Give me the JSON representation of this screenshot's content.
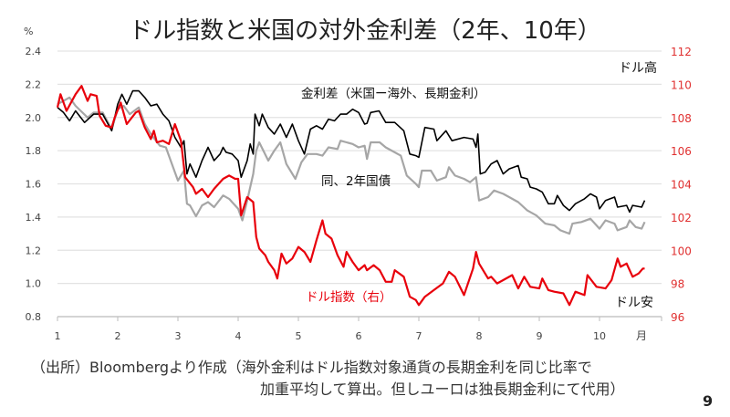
{
  "page_number": "9",
  "footnote": {
    "line1": "（出所）Bloombergより作成（海外金利はドル指数対象通貨の長期金利を同じ比率で",
    "line2": "加重平均して算出。但しユーロは独長期金利にて代用）"
  },
  "colors": {
    "spread10": "#000000",
    "spread2": "#a6a6a6",
    "dxy": "#e8000b",
    "right_axis": "#e03030"
  },
  "chart_data": {
    "type": "line",
    "title": "ドル指数と米国の対外金利差（2年、10年）",
    "ylabel_left": "%",
    "xlabel": "月",
    "x_ticks": [
      "1",
      "2",
      "3",
      "4",
      "5",
      "6",
      "7",
      "8",
      "9",
      "10"
    ],
    "xlim": [
      1,
      11
    ],
    "ylim_left": [
      0.8,
      2.4
    ],
    "ylim_right": [
      96,
      112
    ],
    "yticks_left": [
      "0.8",
      "1.0",
      "1.2",
      "1.4",
      "1.6",
      "1.8",
      "2.0",
      "2.2",
      "2.4"
    ],
    "yticks_right": [
      "96",
      "98",
      "100",
      "102",
      "104",
      "106",
      "108",
      "110",
      "112"
    ],
    "grid": true,
    "annotations": {
      "top_right": "ドル高",
      "bottom_right": "ドル安"
    },
    "series": [
      {
        "name": "金利差（米国ー海外、長期金利）",
        "axis": "left",
        "x": [
          1,
          1.1,
          1.2,
          1.3,
          1.45,
          1.6,
          1.75,
          1.9,
          2.0,
          2.07,
          2.15,
          2.25,
          2.35,
          2.45,
          2.55,
          2.65,
          2.75,
          2.85,
          2.95,
          3.05,
          3.1,
          3.15,
          3.2,
          3.3,
          3.4,
          3.5,
          3.6,
          3.7,
          3.75,
          3.8,
          3.9,
          4.0,
          4.05,
          4.15,
          4.2,
          4.25,
          4.28,
          4.35,
          4.4,
          4.5,
          4.6,
          4.7,
          4.8,
          4.9,
          5.0,
          5.1,
          5.2,
          5.3,
          5.4,
          5.5,
          5.6,
          5.7,
          5.8,
          5.9,
          6.0,
          6.1,
          6.14,
          6.2,
          6.34,
          6.45,
          6.6,
          6.75,
          6.85,
          6.95,
          7.0,
          7.1,
          7.25,
          7.3,
          7.45,
          7.55,
          7.75,
          7.9,
          7.95,
          7.98,
          8.02,
          8.1,
          8.2,
          8.3,
          8.4,
          8.5,
          8.65,
          8.7,
          8.8,
          8.85,
          8.95,
          9.05,
          9.15,
          9.25,
          9.3,
          9.4,
          9.5,
          9.6,
          9.75,
          9.85,
          9.95,
          10.0,
          10.1,
          10.25,
          10.3,
          10.45,
          10.5,
          10.55,
          10.7,
          10.75
        ],
        "y": [
          2.06,
          2.03,
          1.98,
          2.04,
          1.97,
          2.02,
          2.02,
          1.92,
          2.08,
          2.14,
          2.08,
          2.16,
          2.16,
          2.12,
          2.07,
          2.08,
          2.02,
          1.98,
          1.88,
          1.82,
          1.86,
          1.66,
          1.72,
          1.64,
          1.74,
          1.82,
          1.74,
          1.78,
          1.82,
          1.79,
          1.78,
          1.74,
          1.64,
          1.74,
          1.84,
          1.78,
          2.02,
          1.95,
          2.02,
          1.94,
          1.9,
          1.96,
          1.88,
          1.96,
          1.86,
          1.78,
          1.93,
          1.95,
          1.93,
          1.99,
          1.98,
          2.02,
          2.02,
          2.05,
          2.03,
          1.96,
          1.965,
          2.03,
          2.04,
          1.97,
          1.97,
          1.92,
          1.78,
          1.77,
          1.76,
          1.94,
          1.93,
          1.86,
          1.92,
          1.86,
          1.88,
          1.87,
          1.82,
          1.9,
          1.66,
          1.67,
          1.72,
          1.74,
          1.66,
          1.69,
          1.71,
          1.64,
          1.63,
          1.58,
          1.57,
          1.55,
          1.48,
          1.48,
          1.53,
          1.47,
          1.44,
          1.48,
          1.51,
          1.54,
          1.52,
          1.45,
          1.5,
          1.52,
          1.46,
          1.47,
          1.43,
          1.47,
          1.46,
          1.5
        ]
      },
      {
        "name": "同、2年国債",
        "axis": "left",
        "x": [
          1,
          1.2,
          1.3,
          1.5,
          1.6,
          1.75,
          1.9,
          2.0,
          2.1,
          2.2,
          2.35,
          2.45,
          2.55,
          2.7,
          2.8,
          2.9,
          3.0,
          3.1,
          3.15,
          3.2,
          3.3,
          3.4,
          3.5,
          3.6,
          3.75,
          3.85,
          4.0,
          4.07,
          4.15,
          4.25,
          4.3,
          4.35,
          4.5,
          4.6,
          4.7,
          4.8,
          4.95,
          5.05,
          5.15,
          5.3,
          5.4,
          5.5,
          5.65,
          5.7,
          5.8,
          5.9,
          6.0,
          6.1,
          6.14,
          6.2,
          6.35,
          6.45,
          6.55,
          6.7,
          6.8,
          6.95,
          7.0,
          7.05,
          7.2,
          7.3,
          7.45,
          7.5,
          7.6,
          7.75,
          7.85,
          7.95,
          8.0,
          8.15,
          8.25,
          8.4,
          8.5,
          8.65,
          8.8,
          8.95,
          9.1,
          9.25,
          9.35,
          9.5,
          9.55,
          9.7,
          9.85,
          10.0,
          10.1,
          10.25,
          10.3,
          10.45,
          10.5,
          10.6,
          10.7,
          10.75
        ],
        "y": [
          2.08,
          2.12,
          2.07,
          2.0,
          2.03,
          2.03,
          1.93,
          2.05,
          2.07,
          2.02,
          2.06,
          1.96,
          1.9,
          1.83,
          1.82,
          1.72,
          1.62,
          1.68,
          1.48,
          1.47,
          1.405,
          1.47,
          1.49,
          1.46,
          1.53,
          1.51,
          1.45,
          1.38,
          1.5,
          1.66,
          1.8,
          1.85,
          1.74,
          1.8,
          1.85,
          1.72,
          1.63,
          1.73,
          1.78,
          1.78,
          1.77,
          1.82,
          1.81,
          1.86,
          1.85,
          1.84,
          1.82,
          1.83,
          1.75,
          1.85,
          1.85,
          1.82,
          1.8,
          1.77,
          1.65,
          1.6,
          1.58,
          1.68,
          1.68,
          1.62,
          1.64,
          1.7,
          1.65,
          1.63,
          1.61,
          1.64,
          1.5,
          1.52,
          1.56,
          1.54,
          1.52,
          1.49,
          1.44,
          1.41,
          1.36,
          1.35,
          1.32,
          1.3,
          1.36,
          1.37,
          1.39,
          1.33,
          1.38,
          1.36,
          1.32,
          1.34,
          1.38,
          1.34,
          1.33,
          1.37
        ]
      },
      {
        "name": "ドル指数（右）",
        "axis": "right",
        "x": [
          1,
          1.05,
          1.15,
          1.3,
          1.4,
          1.5,
          1.55,
          1.65,
          1.7,
          1.8,
          1.9,
          1.95,
          2.05,
          2.15,
          2.3,
          2.35,
          2.45,
          2.55,
          2.6,
          2.65,
          2.75,
          2.85,
          2.95,
          3.05,
          3.12,
          3.25,
          3.3,
          3.4,
          3.5,
          3.6,
          3.75,
          3.85,
          3.95,
          4.0,
          4.05,
          4.15,
          4.25,
          4.3,
          4.35,
          4.45,
          4.5,
          4.6,
          4.65,
          4.72,
          4.8,
          4.9,
          5.0,
          5.1,
          5.2,
          5.3,
          5.4,
          5.45,
          5.55,
          5.65,
          5.75,
          5.8,
          5.9,
          6.0,
          6.1,
          6.14,
          6.25,
          6.35,
          6.45,
          6.55,
          6.6,
          6.75,
          6.85,
          6.95,
          7.0,
          7.1,
          7.25,
          7.4,
          7.5,
          7.6,
          7.75,
          7.9,
          7.95,
          8.0,
          8.15,
          8.2,
          8.3,
          8.4,
          8.55,
          8.65,
          8.75,
          8.85,
          9.0,
          9.05,
          9.15,
          9.25,
          9.4,
          9.5,
          9.6,
          9.75,
          9.8,
          9.95,
          10.1,
          10.2,
          10.3,
          10.35,
          10.45,
          10.55,
          10.65,
          10.72,
          10.75
        ],
        "y": [
          108.6,
          109.4,
          108.4,
          109.4,
          109.9,
          109.0,
          109.4,
          109.3,
          108.1,
          107.5,
          107.4,
          108.0,
          108.9,
          107.6,
          108.3,
          108.4,
          107.4,
          106.7,
          107.2,
          106.5,
          106.6,
          106.4,
          107.6,
          106.6,
          104.4,
          103.8,
          103.4,
          103.7,
          103.2,
          103.7,
          104.3,
          104.5,
          104.3,
          104.3,
          102.1,
          103.2,
          102.9,
          100.8,
          100.1,
          99.7,
          99.3,
          98.8,
          98.3,
          99.8,
          99.2,
          99.5,
          100.2,
          99.9,
          99.3,
          100.6,
          101.8,
          101.0,
          100.7,
          99.7,
          99.0,
          99.9,
          99.3,
          98.8,
          99.1,
          98.8,
          99.1,
          98.8,
          98.1,
          98.1,
          98.8,
          98.4,
          97.2,
          97.0,
          96.7,
          97.2,
          97.6,
          98.0,
          98.7,
          98.4,
          97.3,
          98.9,
          99.9,
          99.2,
          98.3,
          98.4,
          98.0,
          98.2,
          98.5,
          97.7,
          98.4,
          97.8,
          97.7,
          98.3,
          97.6,
          97.5,
          97.4,
          96.7,
          97.5,
          97.3,
          98.5,
          97.8,
          97.7,
          98.2,
          99.5,
          99.0,
          99.2,
          98.4,
          98.6,
          98.9,
          98.9
        ]
      }
    ]
  }
}
